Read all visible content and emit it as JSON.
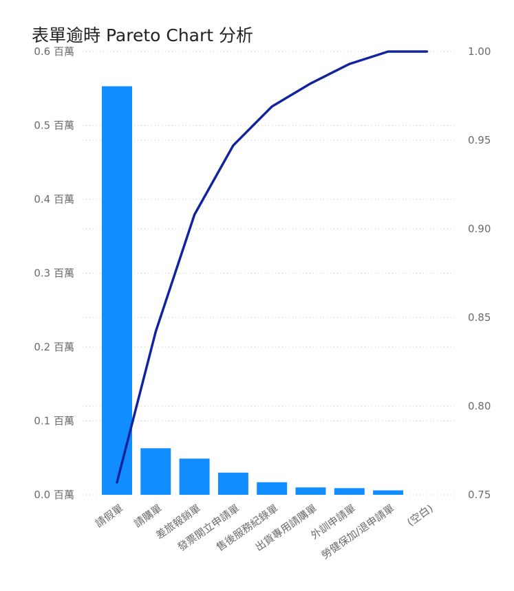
{
  "chart_data": {
    "type": "bar",
    "title": "表單逾時 Pareto Chart 分析",
    "categories": [
      "請假單",
      "請購單",
      "差旅報銷單",
      "發票開立申請單",
      "售後服務紀錄單",
      "出貨專用請購單",
      "外訓申請單",
      "勞健保加/退申請單",
      "(空白)"
    ],
    "series": [
      {
        "kind": "bar",
        "axis": "left",
        "values": [
          0.553,
          0.063,
          0.049,
          0.03,
          0.017,
          0.01,
          0.009,
          0.006,
          0.0
        ]
      },
      {
        "kind": "line",
        "axis": "right",
        "values": [
          0.757,
          0.842,
          0.908,
          0.947,
          0.969,
          0.982,
          0.993,
          1.0,
          1.0
        ]
      }
    ],
    "y_left": {
      "ticks": [
        0.0,
        0.1,
        0.2,
        0.3,
        0.4,
        0.5,
        0.6
      ],
      "tick_labels": [
        "0.0 百萬",
        "0.1 百萬",
        "0.2 百萬",
        "0.3 百萬",
        "0.4 百萬",
        "0.5 百萬",
        "0.6 百萬"
      ],
      "range": [
        0,
        0.6
      ]
    },
    "y_right": {
      "ticks": [
        0.75,
        0.8,
        0.85,
        0.9,
        0.95,
        1.0
      ],
      "tick_labels": [
        "0.75",
        "0.80",
        "0.85",
        "0.90",
        "0.95",
        "1.00"
      ],
      "range": [
        0.75,
        1.0
      ]
    },
    "grid": "dotted horizontal",
    "colors": {
      "bar": "#118DFF",
      "line": "#12239E"
    }
  }
}
